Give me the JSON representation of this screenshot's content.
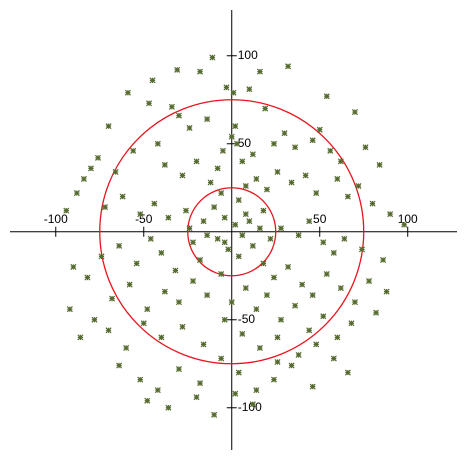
{
  "chart_data": {
    "type": "scatter",
    "x": [
      -11,
      -18,
      -31,
      16,
      32,
      -45,
      -59,
      -3,
      1,
      10,
      19,
      54,
      70,
      -70,
      -47,
      -34,
      -30,
      -24,
      -14,
      2,
      0,
      3,
      -5,
      6,
      -8,
      12,
      24,
      30,
      36,
      46,
      50,
      56,
      62,
      76,
      84,
      -80,
      -76,
      -84,
      -66,
      -56,
      -42,
      -38,
      -28,
      -20,
      -12,
      -6,
      4,
      8,
      14,
      20,
      26,
      34,
      42,
      48,
      60,
      66,
      72,
      80,
      90,
      98,
      -94,
      -88,
      -72,
      -62,
      -52,
      -44,
      -36,
      -26,
      -16,
      -10,
      -4,
      2,
      6,
      10,
      16,
      22,
      28,
      38,
      44,
      52,
      58,
      64,
      74,
      86,
      -90,
      -82,
      -74,
      -64,
      -54,
      -46,
      -40,
      -32,
      -22,
      -18,
      -8,
      -2,
      4,
      12,
      18,
      24,
      32,
      40,
      46,
      54,
      62,
      70,
      78,
      88,
      -92,
      -78,
      -68,
      -58,
      -48,
      -38,
      -30,
      -22,
      -14,
      -6,
      0,
      8,
      14,
      20,
      28,
      36,
      44,
      52,
      60,
      68,
      82,
      -86,
      -70,
      -60,
      -50,
      -40,
      -28,
      -16,
      -4,
      6,
      16,
      26,
      38,
      48,
      58,
      66,
      -64,
      -52,
      -42,
      -30,
      -18,
      -6,
      4,
      14,
      24,
      34,
      46,
      -48,
      -36,
      -20,
      -10,
      2,
      12,
      26,
      -24,
      -14,
      -4,
      8,
      18
    ],
    "values": [
      99,
      91,
      92,
      91,
      94,
      86,
      79,
      82,
      79,
      81,
      70,
      77,
      68,
      60,
      73,
      71,
      66,
      59,
      64,
      60,
      54,
      50,
      46,
      40,
      36,
      44,
      50,
      56,
      48,
      52,
      58,
      46,
      40,
      48,
      38,
      36,
      42,
      30,
      34,
      46,
      50,
      38,
      32,
      40,
      28,
      22,
      18,
      26,
      30,
      24,
      34,
      28,
      32,
      22,
      30,
      20,
      26,
      16,
      10,
      4,
      12,
      22,
      14,
      20,
      10,
      16,
      8,
      12,
      6,
      14,
      8,
      4,
      -2,
      6,
      2,
      -4,
      2,
      -2,
      6,
      -6,
      -12,
      -4,
      -10,
      -16,
      -20,
      -26,
      -14,
      -8,
      -18,
      -4,
      -12,
      -22,
      -6,
      -16,
      -4,
      -10,
      -14,
      -8,
      -18,
      -26,
      -20,
      -30,
      -36,
      -24,
      -32,
      -40,
      -28,
      -34,
      -44,
      -50,
      -38,
      -30,
      -44,
      -34,
      -40,
      -28,
      -36,
      -24,
      -40,
      -32,
      -44,
      -36,
      -50,
      -42,
      -56,
      -48,
      -60,
      -52,
      -46,
      -60,
      -56,
      -66,
      -52,
      -60,
      -54,
      -64,
      -50,
      -58,
      -66,
      -60,
      -70,
      -64,
      -72,
      -80,
      -76,
      -84,
      -90,
      -78,
      -86,
      -72,
      -80,
      -90,
      -84,
      -76,
      -88,
      -96,
      -100,
      -94,
      -104,
      -92,
      -98,
      -74,
      2,
      -2,
      -6,
      10,
      12
    ],
    "color": "#556b2f",
    "circles": [
      {
        "r": 25
      },
      {
        "r": 75
      }
    ],
    "circle_color": "#e8141e",
    "xlim": [
      -126,
      128
    ],
    "ylim": [
      -124,
      126
    ],
    "xticks": [
      -100,
      -50,
      50,
      100
    ],
    "yticks": [
      -100,
      -50,
      50,
      100
    ]
  }
}
